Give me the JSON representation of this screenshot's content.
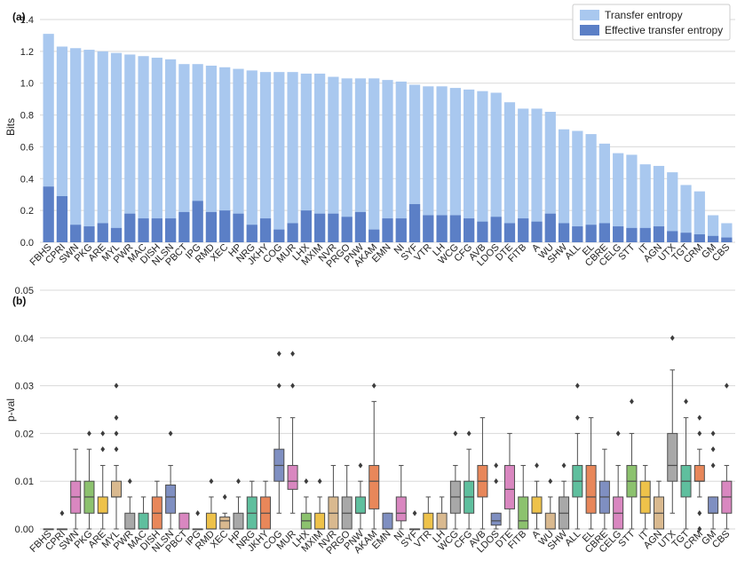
{
  "colors": {
    "transfer_entropy": "#a9c8ef",
    "effective_transfer_entropy": "#5b7fc6",
    "box_palette": [
      "#e8875a",
      "#7f8fc1",
      "#d987c0",
      "#8cc26e",
      "#eec24a",
      "#d9b98f",
      "#a8a8a8",
      "#5fbf9e"
    ],
    "box_line": "#4d4d4d"
  },
  "chart_data": [
    {
      "panel_label": "(a)",
      "type": "bar",
      "title": "",
      "xlabel": "",
      "ylabel": "Bits",
      "ylim": [
        0,
        1.4
      ],
      "yticks": [
        "0.0",
        "0.2",
        "0.4",
        "0.6",
        "0.8",
        "1.0",
        "1.2",
        "1.4"
      ],
      "grid": true,
      "legend_position": "top-right",
      "categories": [
        "FBHS",
        "CPRI",
        "SWN",
        "PKG",
        "ARE",
        "MYL",
        "PWR",
        "MAC",
        "DISH",
        "NLSN",
        "PBCT",
        "IPG",
        "RMD",
        "XEC",
        "HP",
        "NRG",
        "JKHY",
        "COG",
        "MUR",
        "LHX",
        "MXIM",
        "NVR",
        "PRGO",
        "PNW",
        "AKAM",
        "EMN",
        "NI",
        "SYF",
        "VTR",
        "LH",
        "WCG",
        "CFG",
        "AVB",
        "LDOS",
        "DTE",
        "FITB",
        "A",
        "WU",
        "SHW",
        "ALL",
        "EL",
        "CBRE",
        "CELG",
        "STT",
        "IT",
        "AGN",
        "UTX",
        "TGT",
        "CRM",
        "GM",
        "CBS"
      ],
      "series": [
        {
          "name": "Transfer entropy",
          "values": [
            1.31,
            1.23,
            1.22,
            1.21,
            1.2,
            1.19,
            1.18,
            1.17,
            1.16,
            1.15,
            1.12,
            1.12,
            1.11,
            1.1,
            1.09,
            1.08,
            1.07,
            1.07,
            1.07,
            1.06,
            1.06,
            1.04,
            1.03,
            1.03,
            1.03,
            1.02,
            1.01,
            0.99,
            0.98,
            0.98,
            0.97,
            0.96,
            0.95,
            0.94,
            0.88,
            0.84,
            0.84,
            0.82,
            0.71,
            0.7,
            0.68,
            0.62,
            0.56,
            0.55,
            0.49,
            0.48,
            0.44,
            0.36,
            0.32,
            0.17,
            0.12
          ]
        },
        {
          "name": "Effective transfer entropy",
          "values": [
            0.35,
            0.29,
            0.11,
            0.1,
            0.12,
            0.09,
            0.18,
            0.15,
            0.15,
            0.15,
            0.19,
            0.26,
            0.19,
            0.2,
            0.18,
            0.11,
            0.15,
            0.08,
            0.12,
            0.2,
            0.18,
            0.18,
            0.16,
            0.19,
            0.08,
            0.15,
            0.15,
            0.24,
            0.17,
            0.17,
            0.17,
            0.15,
            0.13,
            0.16,
            0.12,
            0.15,
            0.13,
            0.18,
            0.12,
            0.1,
            0.11,
            0.12,
            0.1,
            0.09,
            0.09,
            0.1,
            0.07,
            0.06,
            0.05,
            0.04,
            0.03
          ]
        }
      ]
    },
    {
      "panel_label": "(b)",
      "type": "box",
      "title": "",
      "xlabel": "",
      "ylabel": "p-val",
      "ylim": [
        0,
        0.05
      ],
      "yticks": [
        "0.00",
        "0.01",
        "0.02",
        "0.03",
        "0.04",
        "0.05"
      ],
      "grid": true,
      "categories": [
        "FBHS",
        "CPRI",
        "SWN",
        "PKG",
        "ARE",
        "MYL",
        "PWR",
        "MAC",
        "DISH",
        "NLSN",
        "PBCT",
        "IPG",
        "RMD",
        "XEC",
        "HP",
        "NRG",
        "JKHY",
        "COG",
        "MUR",
        "LHX",
        "MXIM",
        "NVR",
        "PRGO",
        "PNW",
        "AKAM",
        "EMN",
        "NI",
        "SYF",
        "VTR",
        "LH",
        "WCG",
        "CFG",
        "AVB",
        "LDOS",
        "DTE",
        "FITB",
        "A",
        "WU",
        "SHW",
        "ALL",
        "EL",
        "CBRE",
        "CELG",
        "STT",
        "IT",
        "AGN",
        "UTX",
        "TGT",
        "CRM",
        "GM",
        "CBS"
      ],
      "boxes": [
        {
          "q1": 0,
          "median": 0,
          "q3": 0,
          "whisker_low": 0,
          "whisker_high": 0,
          "outliers": []
        },
        {
          "q1": 0,
          "median": 0,
          "q3": 0,
          "whisker_low": 0,
          "whisker_high": 0,
          "outliers": [
            0.0033
          ]
        },
        {
          "q1": 0.0033,
          "median": 0.0067,
          "q3": 0.01,
          "whisker_low": 0,
          "whisker_high": 0.0167,
          "outliers": []
        },
        {
          "q1": 0.0033,
          "median": 0.0067,
          "q3": 0.01,
          "whisker_low": 0,
          "whisker_high": 0.0167,
          "outliers": [
            0.02
          ]
        },
        {
          "q1": 0.0033,
          "median": 0.0033,
          "q3": 0.0067,
          "whisker_low": 0,
          "whisker_high": 0.0133,
          "outliers": [
            0.0167,
            0.02
          ]
        },
        {
          "q1": 0.0067,
          "median": 0.0067,
          "q3": 0.01,
          "whisker_low": 0,
          "whisker_high": 0.0133,
          "outliers": [
            0.0167,
            0.02,
            0.0233,
            0.03
          ]
        },
        {
          "q1": 0,
          "median": 0,
          "q3": 0.0033,
          "whisker_low": 0,
          "whisker_high": 0.0067,
          "outliers": [
            0.01
          ]
        },
        {
          "q1": 0,
          "median": 0,
          "q3": 0.0033,
          "whisker_low": 0,
          "whisker_high": 0.0067,
          "outliers": []
        },
        {
          "q1": 0,
          "median": 0.0033,
          "q3": 0.0067,
          "whisker_low": 0,
          "whisker_high": 0.01,
          "outliers": []
        },
        {
          "q1": 0.0033,
          "median": 0.0067,
          "q3": 0.0092,
          "whisker_low": 0,
          "whisker_high": 0.0133,
          "outliers": [
            0.02
          ]
        },
        {
          "q1": 0,
          "median": 0,
          "q3": 0.0033,
          "whisker_low": 0,
          "whisker_high": 0.0033,
          "outliers": []
        },
        {
          "q1": 0,
          "median": 0,
          "q3": 0,
          "whisker_low": 0,
          "whisker_high": 0,
          "outliers": [
            0.0033
          ]
        },
        {
          "q1": 0,
          "median": 0,
          "q3": 0.0033,
          "whisker_low": 0,
          "whisker_high": 0.0067,
          "outliers": [
            0.01
          ]
        },
        {
          "q1": 0,
          "median": 0.0017,
          "q3": 0.0025,
          "whisker_low": 0,
          "whisker_high": 0.0033,
          "outliers": [
            0.0067
          ]
        },
        {
          "q1": 0,
          "median": 0,
          "q3": 0.0033,
          "whisker_low": 0,
          "whisker_high": 0.0067,
          "outliers": [
            0.01
          ]
        },
        {
          "q1": 0,
          "median": 0.0033,
          "q3": 0.0067,
          "whisker_low": 0,
          "whisker_high": 0.01,
          "outliers": []
        },
        {
          "q1": 0,
          "median": 0.0033,
          "q3": 0.0067,
          "whisker_low": 0,
          "whisker_high": 0.01,
          "outliers": []
        },
        {
          "q1": 0.01,
          "median": 0.0133,
          "q3": 0.0167,
          "whisker_low": 0.0033,
          "whisker_high": 0.0233,
          "outliers": [
            0.03,
            0.0367
          ]
        },
        {
          "q1": 0.0083,
          "median": 0.01,
          "q3": 0.0133,
          "whisker_low": 0.0033,
          "whisker_high": 0.0233,
          "outliers": [
            0.03,
            0.0367
          ]
        },
        {
          "q1": 0,
          "median": 0.0017,
          "q3": 0.0033,
          "whisker_low": 0,
          "whisker_high": 0.0067,
          "outliers": [
            0.01
          ]
        },
        {
          "q1": 0,
          "median": 0,
          "q3": 0.0033,
          "whisker_low": 0,
          "whisker_high": 0.0067,
          "outliers": [
            0.01
          ]
        },
        {
          "q1": 0,
          "median": 0.0033,
          "q3": 0.0067,
          "whisker_low": 0,
          "whisker_high": 0.0133,
          "outliers": []
        },
        {
          "q1": 0,
          "median": 0.0033,
          "q3": 0.0067,
          "whisker_low": 0,
          "whisker_high": 0.0133,
          "outliers": []
        },
        {
          "q1": 0.0033,
          "median": 0.0033,
          "q3": 0.0067,
          "whisker_low": 0,
          "whisker_high": 0.01,
          "outliers": [
            0.0133
          ]
        },
        {
          "q1": 0.0042,
          "median": 0.01,
          "q3": 0.0133,
          "whisker_low": 0,
          "whisker_high": 0.0267,
          "outliers": [
            0.03
          ]
        },
        {
          "q1": 0,
          "median": 0,
          "q3": 0.0033,
          "whisker_low": 0,
          "whisker_high": 0.0033,
          "outliers": []
        },
        {
          "q1": 0.0017,
          "median": 0.0033,
          "q3": 0.0067,
          "whisker_low": 0,
          "whisker_high": 0.0133,
          "outliers": []
        },
        {
          "q1": 0,
          "median": 0,
          "q3": 0,
          "whisker_low": 0,
          "whisker_high": 0,
          "outliers": [
            0.0033
          ]
        },
        {
          "q1": 0,
          "median": 0,
          "q3": 0.0033,
          "whisker_low": 0,
          "whisker_high": 0.0067,
          "outliers": []
        },
        {
          "q1": 0,
          "median": 0,
          "q3": 0.0033,
          "whisker_low": 0,
          "whisker_high": 0.0067,
          "outliers": []
        },
        {
          "q1": 0.0033,
          "median": 0.0067,
          "q3": 0.01,
          "whisker_low": 0,
          "whisker_high": 0.0133,
          "outliers": [
            0.02
          ]
        },
        {
          "q1": 0.0033,
          "median": 0.0067,
          "q3": 0.01,
          "whisker_low": 0,
          "whisker_high": 0.0167,
          "outliers": [
            0.02
          ]
        },
        {
          "q1": 0.0067,
          "median": 0.01,
          "q3": 0.0133,
          "whisker_low": 0,
          "whisker_high": 0.0233,
          "outliers": []
        },
        {
          "q1": 0.0008,
          "median": 0.0017,
          "q3": 0.0033,
          "whisker_low": 0,
          "whisker_high": 0.0033,
          "outliers": [
            0.01,
            0.0133
          ]
        },
        {
          "q1": 0.0042,
          "median": 0.0083,
          "q3": 0.0133,
          "whisker_low": 0,
          "whisker_high": 0.02,
          "outliers": []
        },
        {
          "q1": 0,
          "median": 0.0017,
          "q3": 0.0067,
          "whisker_low": 0,
          "whisker_high": 0.0133,
          "outliers": []
        },
        {
          "q1": 0.0033,
          "median": 0.0033,
          "q3": 0.0067,
          "whisker_low": 0,
          "whisker_high": 0.01,
          "outliers": [
            0.0133
          ]
        },
        {
          "q1": 0,
          "median": 0,
          "q3": 0.0033,
          "whisker_low": 0,
          "whisker_high": 0.0067,
          "outliers": [
            0.01
          ]
        },
        {
          "q1": 0,
          "median": 0.0033,
          "q3": 0.0067,
          "whisker_low": 0,
          "whisker_high": 0.01,
          "outliers": [
            0.0133
          ]
        },
        {
          "q1": 0.0067,
          "median": 0.01,
          "q3": 0.0133,
          "whisker_low": 0,
          "whisker_high": 0.02,
          "outliers": [
            0.0233,
            0.03
          ]
        },
        {
          "q1": 0.0033,
          "median": 0.0067,
          "q3": 0.0133,
          "whisker_low": 0,
          "whisker_high": 0.0233,
          "outliers": []
        },
        {
          "q1": 0.0033,
          "median": 0.0067,
          "q3": 0.01,
          "whisker_low": 0,
          "whisker_high": 0.0167,
          "outliers": []
        },
        {
          "q1": 0,
          "median": 0.0033,
          "q3": 0.0067,
          "whisker_low": 0,
          "whisker_high": 0.0133,
          "outliers": [
            0.02
          ]
        },
        {
          "q1": 0.0067,
          "median": 0.01,
          "q3": 0.0133,
          "whisker_low": 0,
          "whisker_high": 0.02,
          "outliers": [
            0.0267
          ]
        },
        {
          "q1": 0.0033,
          "median": 0.0067,
          "q3": 0.01,
          "whisker_low": 0,
          "whisker_high": 0.0133,
          "outliers": []
        },
        {
          "q1": 0,
          "median": 0.0033,
          "q3": 0.0067,
          "whisker_low": 0,
          "whisker_high": 0.01,
          "outliers": []
        },
        {
          "q1": 0.01,
          "median": 0.0133,
          "q3": 0.02,
          "whisker_low": 0.0033,
          "whisker_high": 0.0333,
          "outliers": [
            0.04
          ]
        },
        {
          "q1": 0.0067,
          "median": 0.01,
          "q3": 0.0133,
          "whisker_low": 0,
          "whisker_high": 0.0233,
          "outliers": [
            0.0267
          ]
        },
        {
          "q1": 0.01,
          "median": 0.01,
          "q3": 0.0133,
          "whisker_low": 0.0067,
          "whisker_high": 0.0167,
          "outliers": [
            0.0033,
            0,
            0.02,
            0.0233
          ]
        },
        {
          "q1": 0.0033,
          "median": 0.0033,
          "q3": 0.0067,
          "whisker_low": 0,
          "whisker_high": 0.0067,
          "outliers": [
            0.0133,
            0.0167,
            0.02
          ]
        },
        {
          "q1": 0.0033,
          "median": 0.0067,
          "q3": 0.01,
          "whisker_low": 0,
          "whisker_high": 0.0133,
          "outliers": [
            0.03
          ]
        }
      ]
    }
  ]
}
